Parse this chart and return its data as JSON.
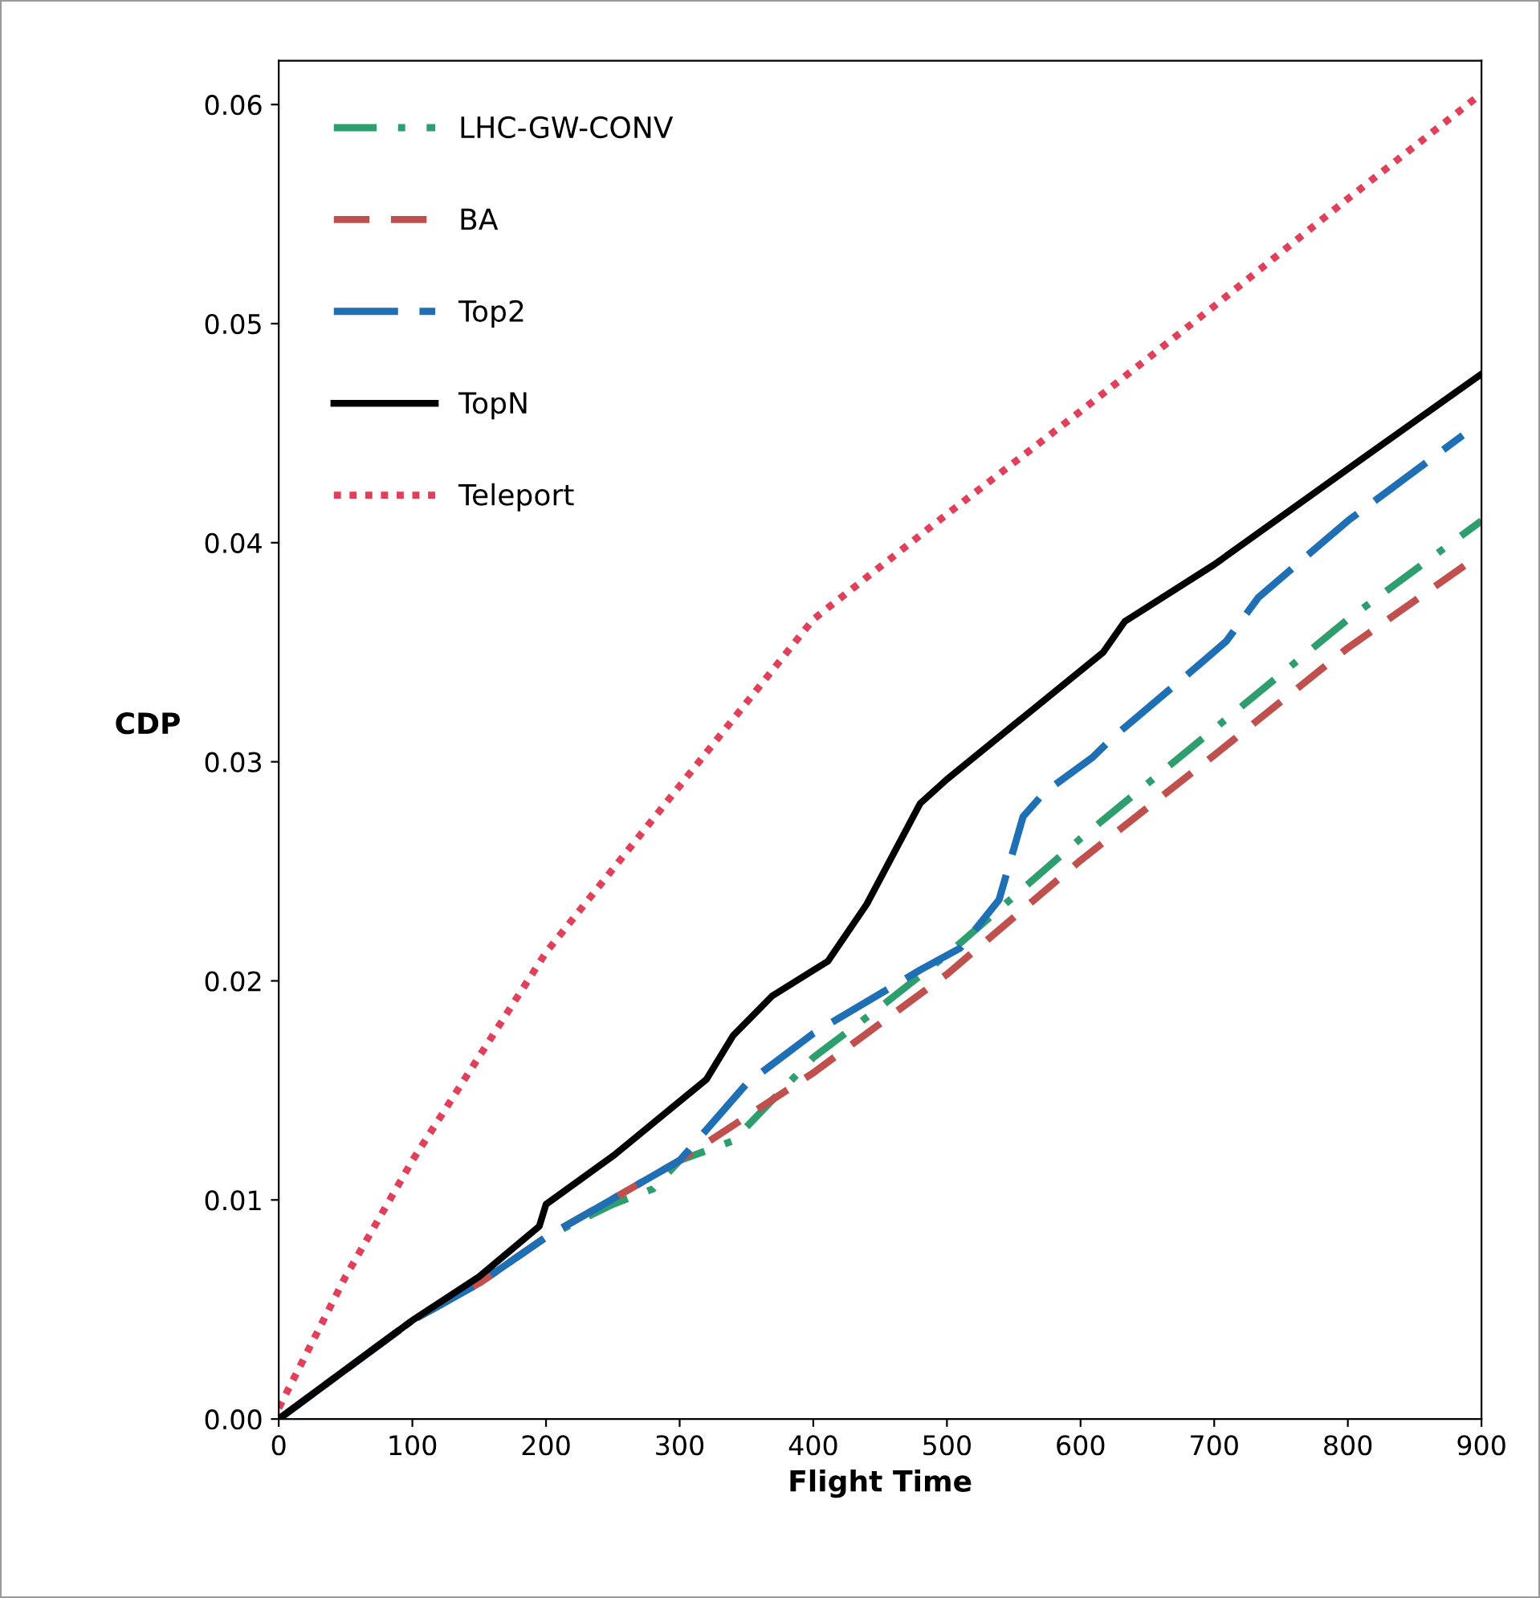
{
  "chart_data": {
    "type": "line",
    "xlabel": "Flight Time",
    "ylabel": "CDP",
    "xlim": [
      0,
      900
    ],
    "xticks": [
      0,
      100,
      200,
      300,
      400,
      500,
      600,
      700,
      800,
      900
    ],
    "ylim": [
      0,
      0.062
    ],
    "yticks": [
      {
        "value": 0,
        "label": "0.00"
      },
      {
        "value": 0.01,
        "label": "0.01"
      },
      {
        "value": 0.02,
        "label": "0.02"
      },
      {
        "value": 0.03,
        "label": "0.03"
      },
      {
        "value": 0.04,
        "label": "0.04"
      },
      {
        "value": 0.05,
        "label": "0.05"
      },
      {
        "value": 0.06,
        "label": "0.06"
      }
    ],
    "grid": false,
    "legend": "top left",
    "marker": "none",
    "series": [
      {
        "name": "LHC-GW-CONV",
        "color": "#2e9e6e",
        "line_style": "dashdot",
        "x": [
          0,
          100,
          150,
          200,
          250,
          280,
          300,
          340,
          400,
          450,
          500,
          600,
          700,
          800,
          900
        ],
        "values": [
          0,
          0.0045,
          0.0062,
          0.0083,
          0.0098,
          0.0105,
          0.0118,
          0.0127,
          0.0165,
          0.0188,
          0.0212,
          0.0265,
          0.0315,
          0.0365,
          0.041
        ]
      },
      {
        "name": "BA",
        "color": "#c0504d",
        "line_style": "dashed",
        "x": [
          0,
          100,
          150,
          200,
          300,
          400,
          500,
          600,
          700,
          800,
          900
        ],
        "values": [
          0,
          0.0045,
          0.0062,
          0.0083,
          0.0118,
          0.0158,
          0.0203,
          0.0255,
          0.0303,
          0.0352,
          0.0395
        ]
      },
      {
        "name": "Top2",
        "color": "#1f6fb5",
        "line_style": "longdash",
        "x": [
          0,
          100,
          150,
          200,
          300,
          350,
          400,
          480,
          510,
          539,
          557,
          573,
          609,
          624,
          690,
          709,
          733,
          754,
          800,
          886
        ],
        "values": [
          0,
          0.0045,
          0.0062,
          0.0083,
          0.0118,
          0.0153,
          0.0176,
          0.0205,
          0.0215,
          0.0237,
          0.0275,
          0.0286,
          0.0302,
          0.0311,
          0.0345,
          0.0355,
          0.0375,
          0.0386,
          0.041,
          0.0449
        ]
      },
      {
        "name": "TopN",
        "color": "#000000",
        "line_style": "solid",
        "x": [
          0,
          100,
          150,
          195,
          200,
          250,
          300,
          320,
          340,
          369,
          411,
          440,
          480,
          500,
          617,
          633,
          700,
          810,
          900
        ],
        "values": [
          0,
          0.0045,
          0.0065,
          0.0088,
          0.0098,
          0.012,
          0.0145,
          0.0155,
          0.0175,
          0.0193,
          0.0209,
          0.0235,
          0.0281,
          0.0292,
          0.035,
          0.0364,
          0.039,
          0.0438,
          0.0477
        ]
      },
      {
        "name": "Teleport",
        "color": "#e0405a",
        "line_style": "dotted",
        "x": [
          0,
          50,
          100,
          200,
          300,
          400,
          500,
          600,
          700,
          800,
          900
        ],
        "values": [
          0.0005,
          0.0065,
          0.0118,
          0.0213,
          0.0289,
          0.0365,
          0.0413,
          0.046,
          0.0508,
          0.0557,
          0.0605
        ]
      }
    ]
  }
}
